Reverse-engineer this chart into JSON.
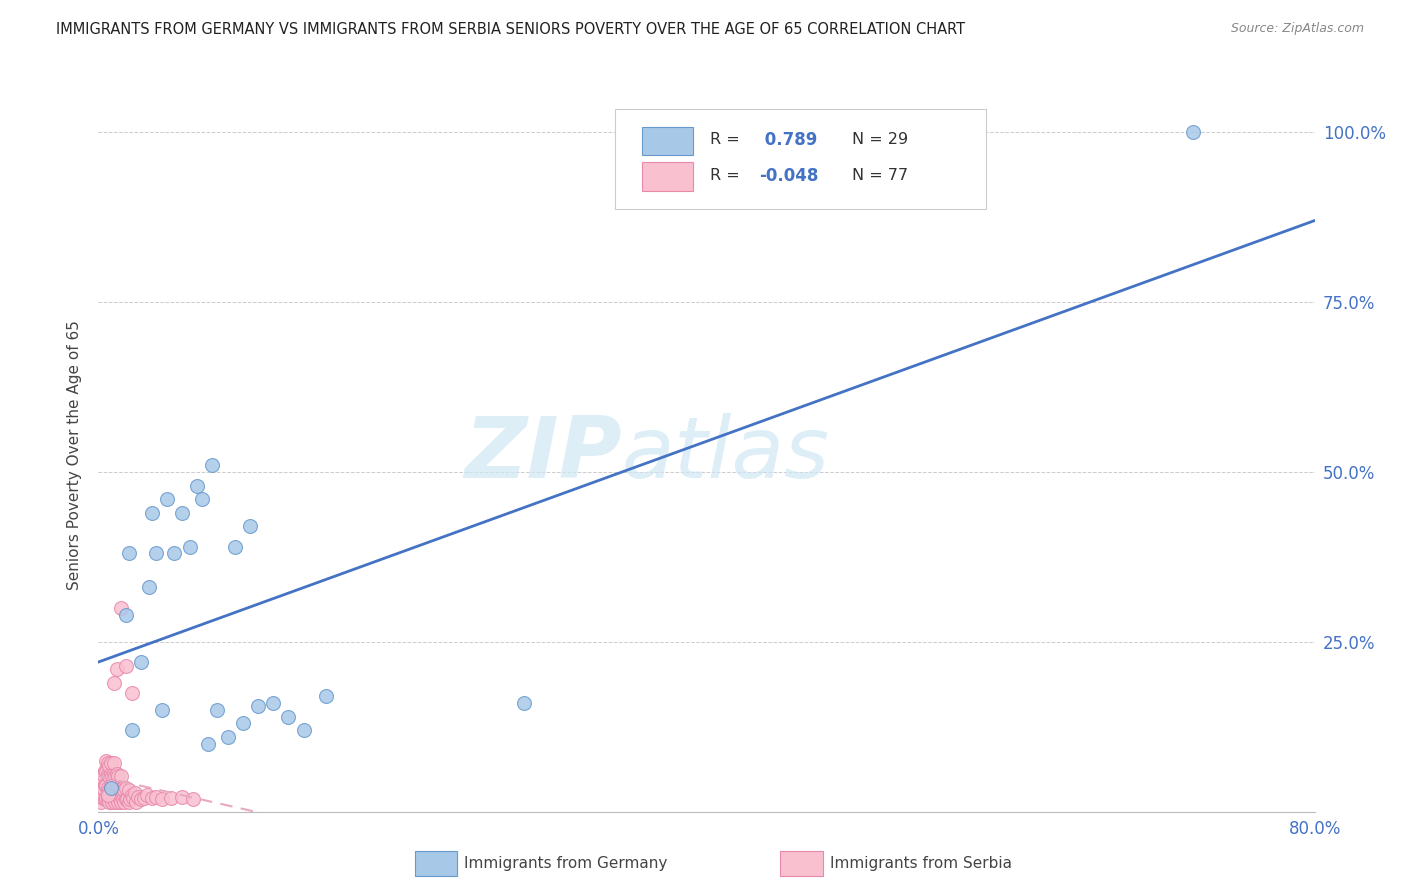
{
  "title": "IMMIGRANTS FROM GERMANY VS IMMIGRANTS FROM SERBIA SENIORS POVERTY OVER THE AGE OF 65 CORRELATION CHART",
  "source": "Source: ZipAtlas.com",
  "ylabel": "Seniors Poverty Over the Age of 65",
  "xlim": [
    0.0,
    0.8
  ],
  "ylim": [
    0.0,
    1.05
  ],
  "x_ticks": [
    0.0,
    0.2,
    0.4,
    0.6,
    0.8
  ],
  "x_tick_labels": [
    "0.0%",
    "",
    "",
    "",
    "80.0%"
  ],
  "y_ticks": [
    0.0,
    0.25,
    0.5,
    0.75,
    1.0
  ],
  "y_tick_labels_right": [
    "",
    "25.0%",
    "50.0%",
    "75.0%",
    "100.0%"
  ],
  "watermark_zip": "ZIP",
  "watermark_atlas": "atlas",
  "germany_face": "#a8c8e8",
  "germany_edge": "#6699cc",
  "serbia_face": "#f9c0d0",
  "serbia_edge": "#e888aa",
  "germany_line": "#4472c4",
  "serbia_line": "#e8a8c0",
  "r_germany": 0.789,
  "n_germany": 29,
  "r_serbia": -0.048,
  "n_serbia": 77,
  "germany_x": [
    0.008,
    0.018,
    0.022,
    0.028,
    0.033,
    0.038,
    0.042,
    0.05,
    0.055,
    0.06,
    0.068,
    0.072,
    0.078,
    0.085,
    0.095,
    0.105,
    0.115,
    0.125,
    0.135,
    0.15,
    0.02,
    0.035,
    0.045,
    0.065,
    0.075,
    0.09,
    0.1,
    0.28,
    0.72
  ],
  "germany_y": [
    0.035,
    0.29,
    0.12,
    0.22,
    0.33,
    0.38,
    0.15,
    0.38,
    0.44,
    0.39,
    0.46,
    0.1,
    0.15,
    0.11,
    0.13,
    0.155,
    0.16,
    0.14,
    0.12,
    0.17,
    0.38,
    0.44,
    0.46,
    0.48,
    0.51,
    0.39,
    0.42,
    0.16,
    1.0
  ],
  "serbia_x": [
    0.001,
    0.002,
    0.002,
    0.003,
    0.003,
    0.003,
    0.004,
    0.004,
    0.004,
    0.005,
    0.005,
    0.005,
    0.005,
    0.006,
    0.006,
    0.006,
    0.006,
    0.007,
    0.007,
    0.007,
    0.007,
    0.008,
    0.008,
    0.008,
    0.008,
    0.009,
    0.009,
    0.009,
    0.01,
    0.01,
    0.01,
    0.01,
    0.011,
    0.011,
    0.011,
    0.012,
    0.012,
    0.012,
    0.013,
    0.013,
    0.013,
    0.014,
    0.014,
    0.015,
    0.015,
    0.015,
    0.016,
    0.016,
    0.017,
    0.017,
    0.018,
    0.018,
    0.019,
    0.02,
    0.02,
    0.021,
    0.022,
    0.023,
    0.024,
    0.025,
    0.026,
    0.028,
    0.03,
    0.032,
    0.035,
    0.038,
    0.042,
    0.048,
    0.055,
    0.062,
    0.012,
    0.015,
    0.01,
    0.018,
    0.022,
    0.008,
    0.006
  ],
  "serbia_y": [
    0.025,
    0.015,
    0.045,
    0.02,
    0.035,
    0.055,
    0.018,
    0.04,
    0.06,
    0.02,
    0.038,
    0.058,
    0.075,
    0.018,
    0.035,
    0.055,
    0.072,
    0.015,
    0.032,
    0.052,
    0.068,
    0.018,
    0.035,
    0.055,
    0.072,
    0.015,
    0.032,
    0.052,
    0.018,
    0.035,
    0.055,
    0.072,
    0.015,
    0.032,
    0.052,
    0.018,
    0.035,
    0.055,
    0.015,
    0.032,
    0.052,
    0.018,
    0.035,
    0.015,
    0.032,
    0.052,
    0.018,
    0.035,
    0.015,
    0.032,
    0.018,
    0.035,
    0.018,
    0.015,
    0.032,
    0.018,
    0.025,
    0.02,
    0.028,
    0.015,
    0.022,
    0.018,
    0.02,
    0.025,
    0.02,
    0.022,
    0.018,
    0.02,
    0.022,
    0.018,
    0.21,
    0.3,
    0.19,
    0.215,
    0.175,
    0.038,
    0.025
  ],
  "legend_germany": "Immigrants from Germany",
  "legend_serbia": "Immigrants from Serbia",
  "bg_color": "#ffffff"
}
